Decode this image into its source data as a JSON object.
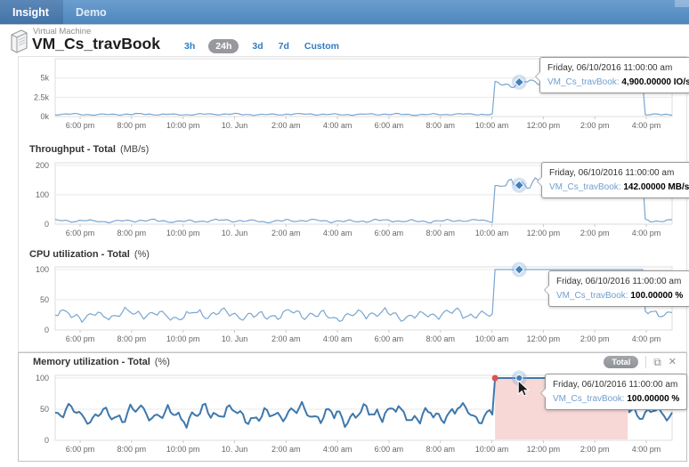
{
  "nav": {
    "brand": "Insight",
    "menu_item": "Demo"
  },
  "header": {
    "entity_type": "Virtual Machine",
    "title": "VM_Cs_travBook",
    "time_ranges": [
      {
        "label": "3h",
        "active": false
      },
      {
        "label": "24h",
        "active": true
      },
      {
        "label": "3d",
        "active": false
      },
      {
        "label": "7d",
        "active": false
      },
      {
        "label": "Custom",
        "active": false
      }
    ]
  },
  "colors": {
    "nav_bg": "#5b92c6",
    "accent_blue": "#2e7cc0",
    "line": "#7aa6d0",
    "line_selected": "#3e78ad",
    "selection_fill": "#f8d7d7",
    "selection_point": "#d9534f",
    "marker": "#4180ba",
    "pill_bg": "#97999d",
    "grid": "#e9e9e9"
  },
  "chart_data": [
    {
      "type": "line",
      "title": "",
      "unit": "IO/s",
      "ylim": [
        0,
        7500
      ],
      "yticks": [
        {
          "label": "5k",
          "value": 5000
        },
        {
          "label": "2.5k",
          "value": 2500
        },
        {
          "label": "0k",
          "value": 0
        }
      ],
      "x_ticks": [
        "6:00 pm",
        "8:00 pm",
        "10:00 pm",
        "10. Jun",
        "2:00 am",
        "4:00 am",
        "6:00 am",
        "8:00 am",
        "10:00 am",
        "12:00 pm",
        "2:00 pm",
        "4:00 pm"
      ],
      "series": [
        {
          "name": "VM_Cs_travBook",
          "baseline": {
            "mean": 280,
            "amp": 110
          },
          "plateau": {
            "mean": 4350,
            "amp": 450,
            "start_frac": 0.713,
            "end_frac": 0.956,
            "max": 5050
          },
          "post": {
            "mean": 280,
            "amp": 110
          }
        }
      ],
      "marker": {
        "frac": 0.752
      },
      "tooltip": {
        "date": "Friday, 06/10/2016 11:00:00 am",
        "name": "VM_Cs_travBook:",
        "value": "4,900.00000 IO/s"
      }
    },
    {
      "type": "line",
      "title": "Throughput - Total",
      "unit": "(MB/s)",
      "ylim": [
        0,
        209
      ],
      "yticks": [
        {
          "label": "200",
          "value": 200
        },
        {
          "label": "100",
          "value": 100
        },
        {
          "label": "0",
          "value": 0
        }
      ],
      "x_ticks": [
        "6:00 pm",
        "8:00 pm",
        "10:00 pm",
        "10. Jun",
        "2:00 am",
        "4:00 am",
        "6:00 am",
        "8:00 am",
        "10:00 am",
        "12:00 pm",
        "2:00 pm",
        "4:00 pm"
      ],
      "series": [
        {
          "name": "VM_Cs_travBook",
          "baseline": {
            "mean": 11,
            "amp": 5
          },
          "plateau": {
            "mean": 138,
            "amp": 22,
            "start_frac": 0.713,
            "end_frac": 0.956,
            "max": 200
          },
          "post": {
            "mean": 13,
            "amp": 6
          }
        }
      ],
      "marker": {
        "frac": 0.752
      },
      "tooltip": {
        "date": "Friday, 06/10/2016 11:00:00 am",
        "name": "VM_Cs_travBook:",
        "value": "142.00000 MB/s"
      }
    },
    {
      "type": "line",
      "title": "CPU utilization - Total",
      "unit": "(%)",
      "ylim": [
        0,
        104.4
      ],
      "yticks": [
        {
          "label": "100",
          "value": 100
        },
        {
          "label": "50",
          "value": 50
        },
        {
          "label": "0",
          "value": 0
        }
      ],
      "x_ticks": [
        "6:00 pm",
        "8:00 pm",
        "10:00 pm",
        "10. Jun",
        "2:00 am",
        "4:00 am",
        "6:00 am",
        "8:00 am",
        "10:00 am",
        "12:00 pm",
        "2:00 pm",
        "4:00 pm"
      ],
      "series": [
        {
          "name": "VM_Cs_travBook",
          "baseline": {
            "mean": 25,
            "amp": 9
          },
          "plateau": {
            "mean": 100,
            "amp": 0,
            "start_frac": 0.713,
            "end_frac": 0.956,
            "max": 100
          },
          "post": {
            "mean": 30,
            "amp": 8
          }
        }
      ],
      "marker": {
        "frac": 0.752
      },
      "tooltip": {
        "date": "Friday, 06/10/2016 11:00:00 am",
        "name": "VM_Cs_travBook:",
        "value": "100.00000 %"
      }
    },
    {
      "type": "line",
      "title": "Memory utilization - Total",
      "unit": "(%)",
      "badge": "Total",
      "selected": true,
      "ylim": [
        0,
        104.3
      ],
      "yticks": [
        {
          "label": "100",
          "value": 100
        },
        {
          "label": "50",
          "value": 50
        },
        {
          "label": "0",
          "value": 0
        }
      ],
      "x_ticks": [
        "6:00 pm",
        "8:00 pm",
        "10:00 pm",
        "10. Jun",
        "2:00 am",
        "4:00 am",
        "6:00 am",
        "8:00 am",
        "10:00 am",
        "12:00 pm",
        "2:00 pm",
        "4:00 pm"
      ],
      "series": [
        {
          "name": "VM_Cs_travBook",
          "baseline": {
            "mean": 42,
            "amp": 15
          },
          "plateau": {
            "mean": 100,
            "amp": 0,
            "start_frac": 0.713,
            "end_frac": 0.928,
            "max": 100
          },
          "post": {
            "mean": 46,
            "amp": 12
          }
        }
      ],
      "selection": {
        "start_frac": 0.713,
        "end_frac": 0.928
      },
      "marker": {
        "frac": 0.752
      },
      "tooltip": {
        "date": "Friday, 06/10/2016 11:00:00 am",
        "name": "VM_Cs_travBook:",
        "value": "100.00000 %"
      }
    }
  ]
}
